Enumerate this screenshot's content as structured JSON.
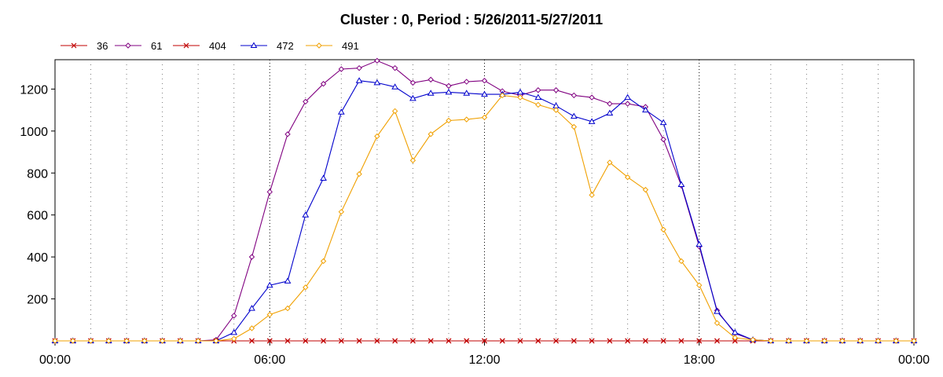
{
  "chart_data": {
    "type": "line",
    "title": "Cluster : 0, Period : 5/26/2011-5/27/2011",
    "xlabel": "",
    "ylabel": "",
    "x_ticks": [
      "00:00",
      "06:00",
      "12:00",
      "18:00",
      "00:00"
    ],
    "y_ticks": [
      "200",
      "400",
      "600",
      "800",
      "1000",
      "1200"
    ],
    "xlim": [
      0,
      24
    ],
    "ylim": [
      0,
      1340
    ],
    "grid": "vertical dotted",
    "legend": "top-left",
    "x": [
      0,
      0.5,
      1,
      1.5,
      2,
      2.5,
      3,
      3.5,
      4,
      4.5,
      5,
      5.5,
      6,
      6.5,
      7,
      7.5,
      8,
      8.5,
      9,
      9.5,
      10,
      10.5,
      11,
      11.5,
      12,
      12.5,
      13,
      13.5,
      14,
      14.5,
      15,
      15.5,
      16,
      16.5,
      17,
      17.5,
      18,
      18.5,
      19,
      19.5,
      20,
      20.5,
      21,
      21.5,
      22,
      22.5,
      23,
      23.5,
      24
    ],
    "series": [
      {
        "name": "36",
        "color": "#c00000",
        "marker": "x",
        "values": [
          0,
          0,
          0,
          0,
          0,
          0,
          0,
          0,
          0,
          0,
          0,
          0,
          0,
          0,
          0,
          0,
          0,
          0,
          0,
          0,
          0,
          0,
          0,
          0,
          0,
          0,
          0,
          0,
          0,
          0,
          0,
          0,
          0,
          0,
          0,
          0,
          0,
          0,
          0,
          0,
          0,
          0,
          0,
          0,
          0,
          0,
          0,
          0,
          0
        ]
      },
      {
        "name": "61",
        "color": "#800080",
        "marker": "diamond",
        "values": [
          0,
          0,
          0,
          0,
          0,
          0,
          0,
          0,
          0,
          5,
          120,
          400,
          710,
          985,
          1140,
          1225,
          1295,
          1300,
          1335,
          1300,
          1230,
          1245,
          1215,
          1235,
          1240,
          1190,
          1170,
          1195,
          1195,
          1170,
          1160,
          1130,
          1130,
          1115,
          960,
          740,
          450,
          145,
          35,
          5,
          0,
          0,
          0,
          0,
          0,
          0,
          0,
          0,
          0
        ]
      },
      {
        "name": "404",
        "color": "#c00000",
        "marker": "x",
        "values": [
          0,
          0,
          0,
          0,
          0,
          0,
          0,
          0,
          0,
          0,
          0,
          0,
          0,
          0,
          0,
          0,
          0,
          0,
          0,
          0,
          0,
          0,
          0,
          0,
          0,
          0,
          0,
          0,
          0,
          0,
          0,
          0,
          0,
          0,
          0,
          0,
          0,
          0,
          0,
          0,
          0,
          0,
          0,
          0,
          0,
          0,
          0,
          0,
          0
        ]
      },
      {
        "name": "472",
        "color": "#0000cc",
        "marker": "triangle",
        "values": [
          0,
          0,
          0,
          0,
          0,
          0,
          0,
          0,
          0,
          0,
          40,
          155,
          265,
          285,
          600,
          775,
          1090,
          1240,
          1230,
          1210,
          1155,
          1180,
          1185,
          1180,
          1175,
          1175,
          1185,
          1160,
          1120,
          1070,
          1045,
          1085,
          1160,
          1100,
          1040,
          745,
          460,
          140,
          40,
          5,
          0,
          0,
          0,
          0,
          0,
          0,
          0,
          0,
          0
        ]
      },
      {
        "name": "491",
        "color": "#f0a000",
        "marker": "diamond",
        "values": [
          0,
          0,
          0,
          0,
          0,
          0,
          0,
          0,
          0,
          0,
          10,
          60,
          125,
          155,
          255,
          380,
          615,
          795,
          975,
          1095,
          860,
          985,
          1050,
          1055,
          1065,
          1170,
          1160,
          1125,
          1100,
          1020,
          695,
          850,
          780,
          720,
          530,
          380,
          265,
          85,
          15,
          5,
          0,
          0,
          0,
          0,
          0,
          0,
          0,
          0,
          0
        ]
      }
    ]
  }
}
